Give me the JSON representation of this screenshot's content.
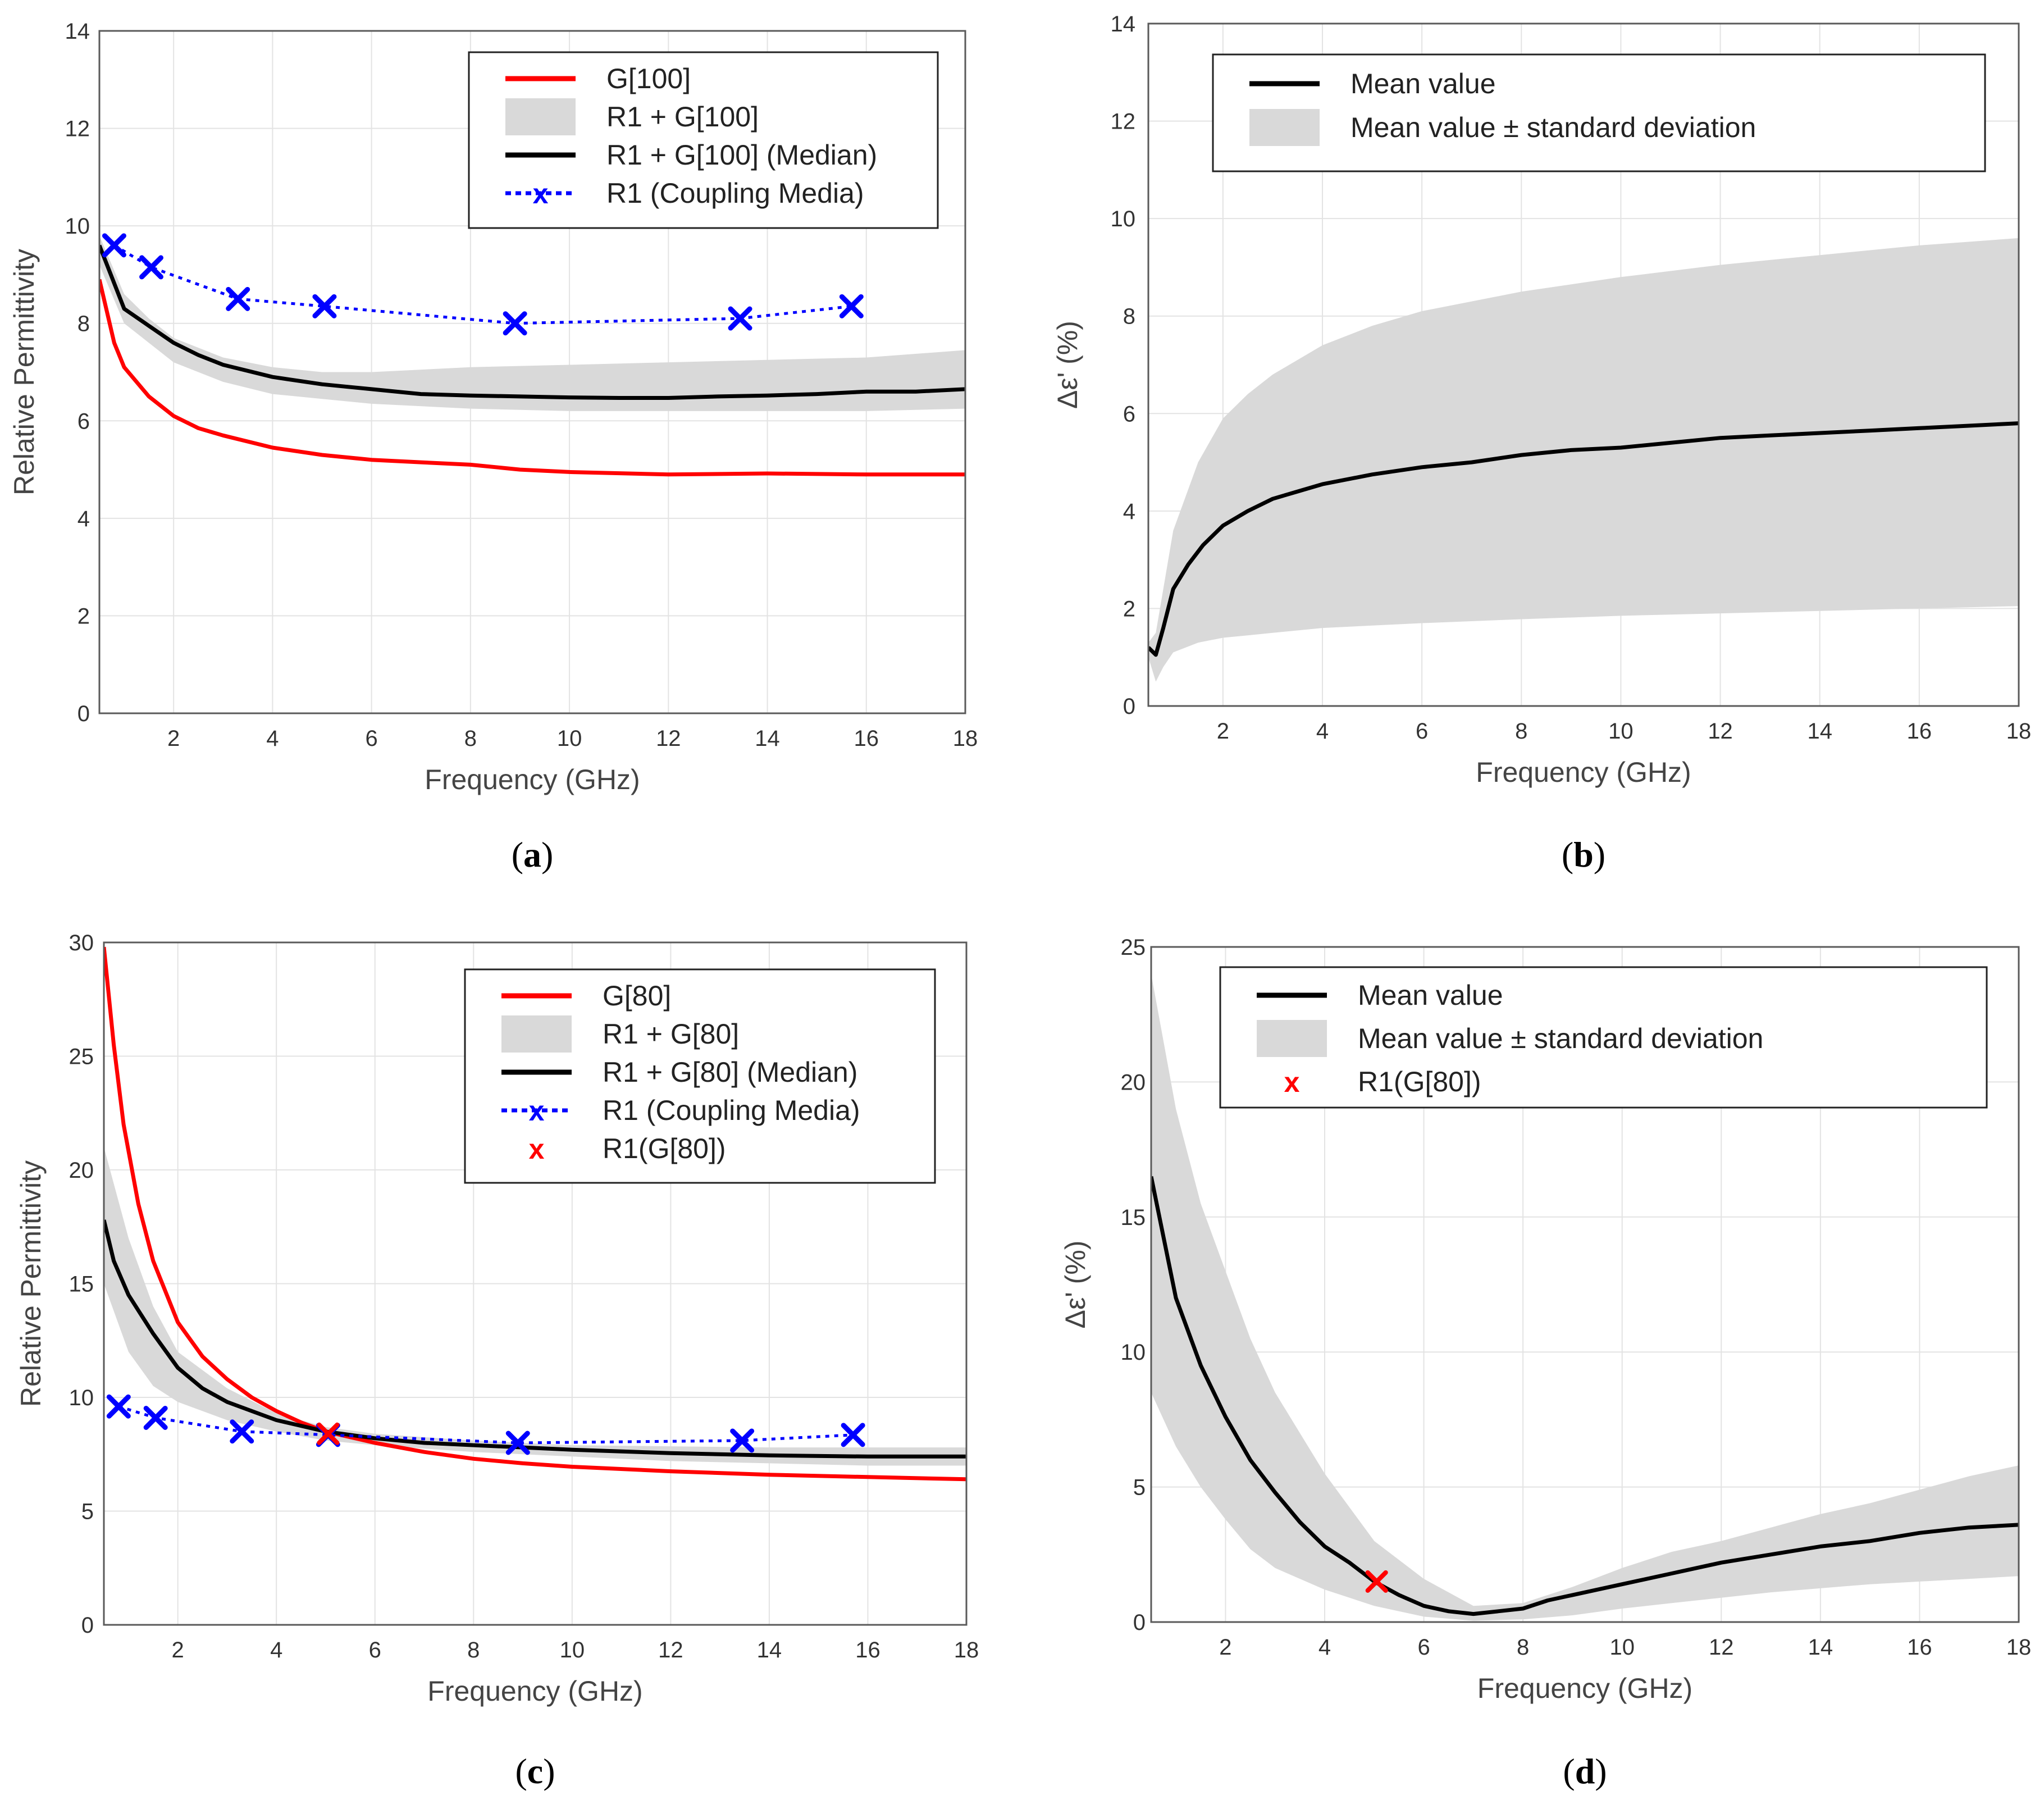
{
  "figure": {
    "captions": [
      "a",
      "b",
      "c",
      "d"
    ]
  },
  "chart_data": [
    {
      "id": "a",
      "type": "line",
      "caption": "a",
      "xlabel": "Frequency (GHz)",
      "ylabel": "Relative Permittivity",
      "xlim": [
        0.5,
        18
      ],
      "ylim": [
        0,
        14
      ],
      "xticks": [
        2,
        4,
        6,
        8,
        10,
        12,
        14,
        16,
        18
      ],
      "yticks": [
        0,
        2,
        4,
        6,
        8,
        10,
        12,
        14
      ],
      "grid": true,
      "legend_position": "top-right",
      "series": [
        {
          "name": "G[100]",
          "kind": "line",
          "color": "#ff0000",
          "x": [
            0.5,
            0.8,
            1,
            1.5,
            2,
            2.5,
            3,
            4,
            5,
            6,
            7,
            8,
            9,
            10,
            12,
            14,
            16,
            18
          ],
          "y": [
            8.9,
            7.6,
            7.1,
            6.5,
            6.1,
            5.85,
            5.7,
            5.45,
            5.3,
            5.2,
            5.15,
            5.1,
            5.0,
            4.95,
            4.9,
            4.92,
            4.9,
            4.9
          ]
        },
        {
          "name": "R1 + G[100]",
          "kind": "band",
          "color": "#d9d9d9",
          "x": [
            0.5,
            1,
            1.5,
            2,
            3,
            4,
            5,
            6,
            8,
            10,
            12,
            14,
            16,
            18
          ],
          "upper": [
            9.8,
            8.6,
            8.1,
            7.7,
            7.3,
            7.1,
            7.0,
            7.0,
            7.1,
            7.15,
            7.2,
            7.25,
            7.3,
            7.45
          ],
          "lower": [
            9.2,
            8.0,
            7.6,
            7.2,
            6.8,
            6.55,
            6.45,
            6.35,
            6.25,
            6.2,
            6.2,
            6.2,
            6.2,
            6.25
          ]
        },
        {
          "name": "R1 + G[100] (Median)",
          "kind": "line",
          "color": "#000000",
          "x": [
            0.5,
            1,
            1.5,
            2,
            2.5,
            3,
            4,
            5,
            6,
            7,
            8,
            9,
            10,
            11,
            12,
            13,
            14,
            15,
            16,
            17,
            18
          ],
          "y": [
            9.6,
            8.3,
            7.95,
            7.6,
            7.35,
            7.15,
            6.9,
            6.75,
            6.65,
            6.55,
            6.52,
            6.5,
            6.48,
            6.47,
            6.47,
            6.5,
            6.52,
            6.55,
            6.6,
            6.6,
            6.65
          ]
        },
        {
          "name": "R1 (Coupling Media)",
          "kind": "dotted-marker",
          "color": "#0000ff",
          "x": [
            0.8,
            1.55,
            3.3,
            5.05,
            8.9,
            13.45,
            15.7
          ],
          "y": [
            9.6,
            9.15,
            8.5,
            8.35,
            8.0,
            8.1,
            8.35
          ]
        }
      ]
    },
    {
      "id": "b",
      "type": "line",
      "caption": "b",
      "xlabel": "Frequency (GHz)",
      "ylabel": "Δε' (%)",
      "xlim": [
        0.5,
        18
      ],
      "ylim": [
        0,
        14
      ],
      "xticks": [
        2,
        4,
        6,
        8,
        10,
        12,
        14,
        16,
        18
      ],
      "yticks": [
        0,
        2,
        4,
        6,
        8,
        10,
        12,
        14
      ],
      "grid": true,
      "legend_position": "top",
      "series": [
        {
          "name": "Mean value",
          "kind": "line",
          "color": "#000000",
          "x": [
            0.5,
            0.65,
            0.8,
            1,
            1.3,
            1.6,
            2,
            2.5,
            3,
            3.5,
            4,
            5,
            6,
            7,
            8,
            9,
            10,
            11,
            12,
            13,
            14,
            15,
            16,
            17,
            18
          ],
          "y": [
            1.2,
            1.05,
            1.6,
            2.4,
            2.9,
            3.3,
            3.7,
            4.0,
            4.25,
            4.4,
            4.55,
            4.75,
            4.9,
            5.0,
            5.15,
            5.25,
            5.3,
            5.4,
            5.5,
            5.55,
            5.6,
            5.65,
            5.7,
            5.75,
            5.8
          ]
        },
        {
          "name": "Mean value  ±  standard deviation",
          "kind": "band",
          "color": "#d9d9d9",
          "x": [
            0.5,
            0.65,
            0.8,
            1,
            1.5,
            2,
            2.5,
            3,
            4,
            5,
            6,
            8,
            10,
            12,
            14,
            16,
            18
          ],
          "upper": [
            1.3,
            1.5,
            2.4,
            3.6,
            5.0,
            5.9,
            6.4,
            6.8,
            7.4,
            7.8,
            8.1,
            8.5,
            8.8,
            9.05,
            9.25,
            9.45,
            9.6
          ],
          "lower": [
            1.0,
            0.5,
            0.8,
            1.1,
            1.3,
            1.4,
            1.45,
            1.5,
            1.6,
            1.65,
            1.7,
            1.78,
            1.85,
            1.9,
            1.95,
            2.0,
            2.05
          ]
        }
      ]
    },
    {
      "id": "c",
      "type": "line",
      "caption": "c",
      "xlabel": "Frequency (GHz)",
      "ylabel": "Relative Permittivity",
      "xlim": [
        0.5,
        18
      ],
      "ylim": [
        0,
        30
      ],
      "xticks": [
        2,
        4,
        6,
        8,
        10,
        12,
        14,
        16,
        18
      ],
      "yticks": [
        0,
        5,
        10,
        15,
        20,
        25,
        30
      ],
      "grid": true,
      "legend_position": "top-right",
      "series": [
        {
          "name": "G[80]",
          "kind": "line",
          "color": "#ff0000",
          "x": [
            0.5,
            0.7,
            0.9,
            1.2,
            1.5,
            2,
            2.5,
            3,
            3.5,
            4,
            4.5,
            5,
            6,
            7,
            8,
            9,
            10,
            12,
            14,
            16,
            18
          ],
          "y": [
            29.8,
            25.5,
            22.0,
            18.5,
            16.0,
            13.3,
            11.8,
            10.8,
            10.0,
            9.4,
            8.9,
            8.5,
            8.0,
            7.6,
            7.3,
            7.1,
            6.95,
            6.75,
            6.6,
            6.5,
            6.4
          ]
        },
        {
          "name": "R1 + G[80]",
          "kind": "band",
          "color": "#d9d9d9",
          "x": [
            0.5,
            1,
            1.5,
            2,
            3,
            4,
            5,
            6,
            8,
            10,
            12,
            14,
            16,
            18
          ],
          "upper": [
            21.0,
            17.0,
            14.0,
            12.0,
            10.4,
            9.3,
            8.7,
            8.4,
            8.1,
            7.9,
            7.85,
            7.8,
            7.8,
            7.8
          ],
          "lower": [
            15.0,
            12.0,
            10.5,
            9.8,
            9.0,
            8.5,
            8.1,
            7.9,
            7.6,
            7.4,
            7.2,
            7.1,
            7.0,
            7.0
          ]
        },
        {
          "name": "R1 + G[80] (Median)",
          "kind": "line",
          "color": "#000000",
          "x": [
            0.5,
            0.7,
            1,
            1.5,
            2,
            2.5,
            3,
            4,
            5,
            6,
            7,
            8,
            9,
            10,
            12,
            14,
            16,
            18
          ],
          "y": [
            17.8,
            16.0,
            14.5,
            12.8,
            11.3,
            10.4,
            9.8,
            9.0,
            8.5,
            8.2,
            8.0,
            7.9,
            7.8,
            7.7,
            7.55,
            7.45,
            7.4,
            7.4
          ]
        },
        {
          "name": "R1 (Coupling Media)",
          "kind": "dotted-marker",
          "color": "#0000ff",
          "x": [
            0.8,
            1.55,
            3.3,
            5.05,
            8.9,
            13.45,
            15.7
          ],
          "y": [
            9.6,
            9.1,
            8.5,
            8.35,
            8.0,
            8.1,
            8.35
          ]
        },
        {
          "name": "R1(G[80])",
          "kind": "marker",
          "color": "#ff0000",
          "x": [
            5.05
          ],
          "y": [
            8.4
          ]
        }
      ]
    },
    {
      "id": "d",
      "type": "line",
      "caption": "d",
      "xlabel": "Frequency (GHz)",
      "ylabel": "Δε' (%)",
      "xlim": [
        0.5,
        18
      ],
      "ylim": [
        0,
        25
      ],
      "xticks": [
        2,
        4,
        6,
        8,
        10,
        12,
        14,
        16,
        18
      ],
      "yticks": [
        0,
        5,
        10,
        15,
        20,
        25
      ],
      "grid": true,
      "legend_position": "top",
      "series": [
        {
          "name": "Mean value",
          "kind": "line",
          "color": "#000000",
          "x": [
            0.5,
            1,
            1.5,
            2,
            2.5,
            3,
            3.5,
            4,
            4.5,
            5,
            5.5,
            6,
            6.5,
            7,
            7.5,
            8,
            8.5,
            9,
            10,
            11,
            12,
            13,
            14,
            15,
            16,
            17,
            18
          ],
          "y": [
            16.5,
            12.0,
            9.5,
            7.6,
            6.0,
            4.8,
            3.7,
            2.8,
            2.2,
            1.5,
            1.0,
            0.6,
            0.4,
            0.3,
            0.4,
            0.5,
            0.8,
            1.0,
            1.4,
            1.8,
            2.2,
            2.5,
            2.8,
            3.0,
            3.3,
            3.5,
            3.6
          ]
        },
        {
          "name": "Mean value  ±  standard deviation",
          "kind": "band",
          "color": "#d9d9d9",
          "x": [
            0.5,
            1,
            1.5,
            2,
            2.5,
            3,
            4,
            5,
            6,
            7,
            8,
            9,
            10,
            11,
            12,
            13,
            14,
            15,
            16,
            17,
            18
          ],
          "upper": [
            24.0,
            19.0,
            15.5,
            13.0,
            10.5,
            8.5,
            5.5,
            3.0,
            1.6,
            0.6,
            0.7,
            1.3,
            2.0,
            2.6,
            3.0,
            3.5,
            4.0,
            4.4,
            4.9,
            5.4,
            5.8
          ],
          "lower": [
            8.5,
            6.5,
            5.0,
            3.8,
            2.7,
            2.0,
            1.2,
            0.6,
            0.2,
            0.05,
            0.1,
            0.25,
            0.5,
            0.7,
            0.9,
            1.1,
            1.25,
            1.4,
            1.5,
            1.6,
            1.7
          ]
        },
        {
          "name": "R1(G[80])",
          "kind": "marker",
          "color": "#ff0000",
          "x": [
            5.05
          ],
          "y": [
            1.5
          ]
        }
      ]
    }
  ],
  "legend_marks": {
    "x_glyph": "X",
    "x_glyph_small": "x"
  }
}
